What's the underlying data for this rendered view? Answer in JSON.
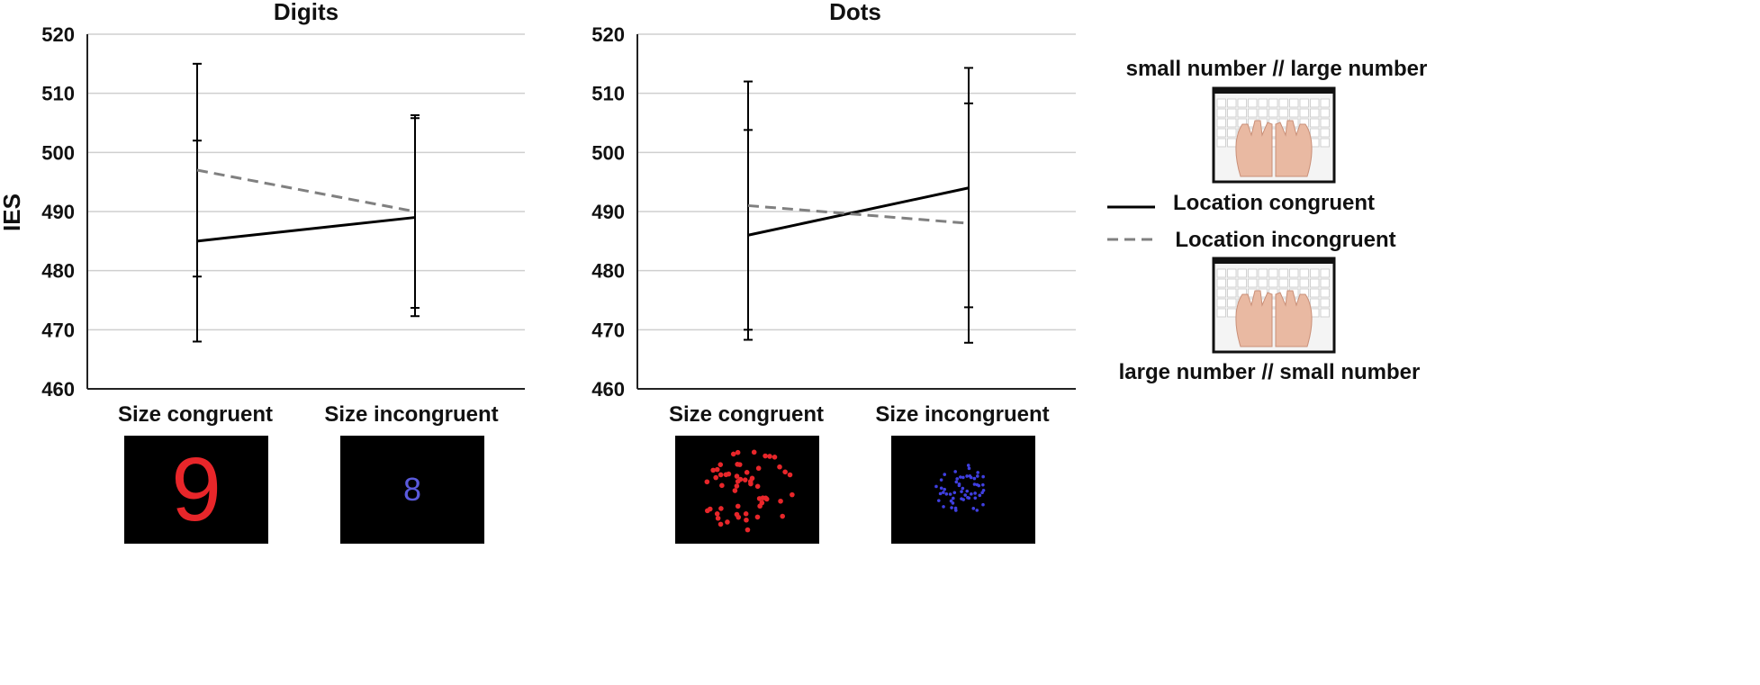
{
  "chart_data": [
    {
      "type": "line",
      "title": "Digits",
      "ylabel": "IES",
      "categories": [
        "Size congruent",
        "Size incongruent"
      ],
      "ylim": [
        460,
        520
      ],
      "yticks": [
        460,
        470,
        480,
        490,
        500,
        510,
        520
      ],
      "grid": true,
      "series": [
        {
          "name": "Location congruent",
          "values": [
            485,
            489
          ],
          "err_low": [
            468,
            472.3
          ],
          "err_high": [
            502,
            506.3
          ],
          "style": "solid",
          "color": "#000000"
        },
        {
          "name": "Location incongruent",
          "values": [
            497,
            490
          ],
          "err_low": [
            479,
            473.7
          ],
          "err_high": [
            515,
            505.8
          ],
          "style": "dashed",
          "color": "#808080"
        }
      ]
    },
    {
      "type": "line",
      "title": "Dots",
      "categories": [
        "Size congruent",
        "Size incongruent"
      ],
      "ylim": [
        460,
        520
      ],
      "yticks": [
        460,
        470,
        480,
        490,
        500,
        510,
        520
      ],
      "grid": true,
      "series": [
        {
          "name": "Location congruent",
          "values": [
            486,
            494
          ],
          "err_low": [
            468.3,
            467.8
          ],
          "err_high": [
            503.8,
            508.3
          ],
          "style": "solid",
          "color": "#000000"
        },
        {
          "name": "Location incongruent",
          "values": [
            491,
            488
          ],
          "err_low": [
            470,
            473.8
          ],
          "err_high": [
            512,
            514.3
          ],
          "style": "dashed",
          "color": "#808080"
        }
      ]
    }
  ],
  "stimuli": {
    "digits_congruent": {
      "glyph": "9",
      "color": "#e8262a"
    },
    "digits_incongruent": {
      "glyph": "8",
      "color": "#5a5adc"
    },
    "dots_congruent_color": "#e8262a",
    "dots_incongruent_color": "#3f3fe0"
  },
  "legend": {
    "top_label": "small number // large number",
    "bottom_label": "large number // small number",
    "entries": [
      "Location congruent",
      "Location incongruent"
    ]
  }
}
